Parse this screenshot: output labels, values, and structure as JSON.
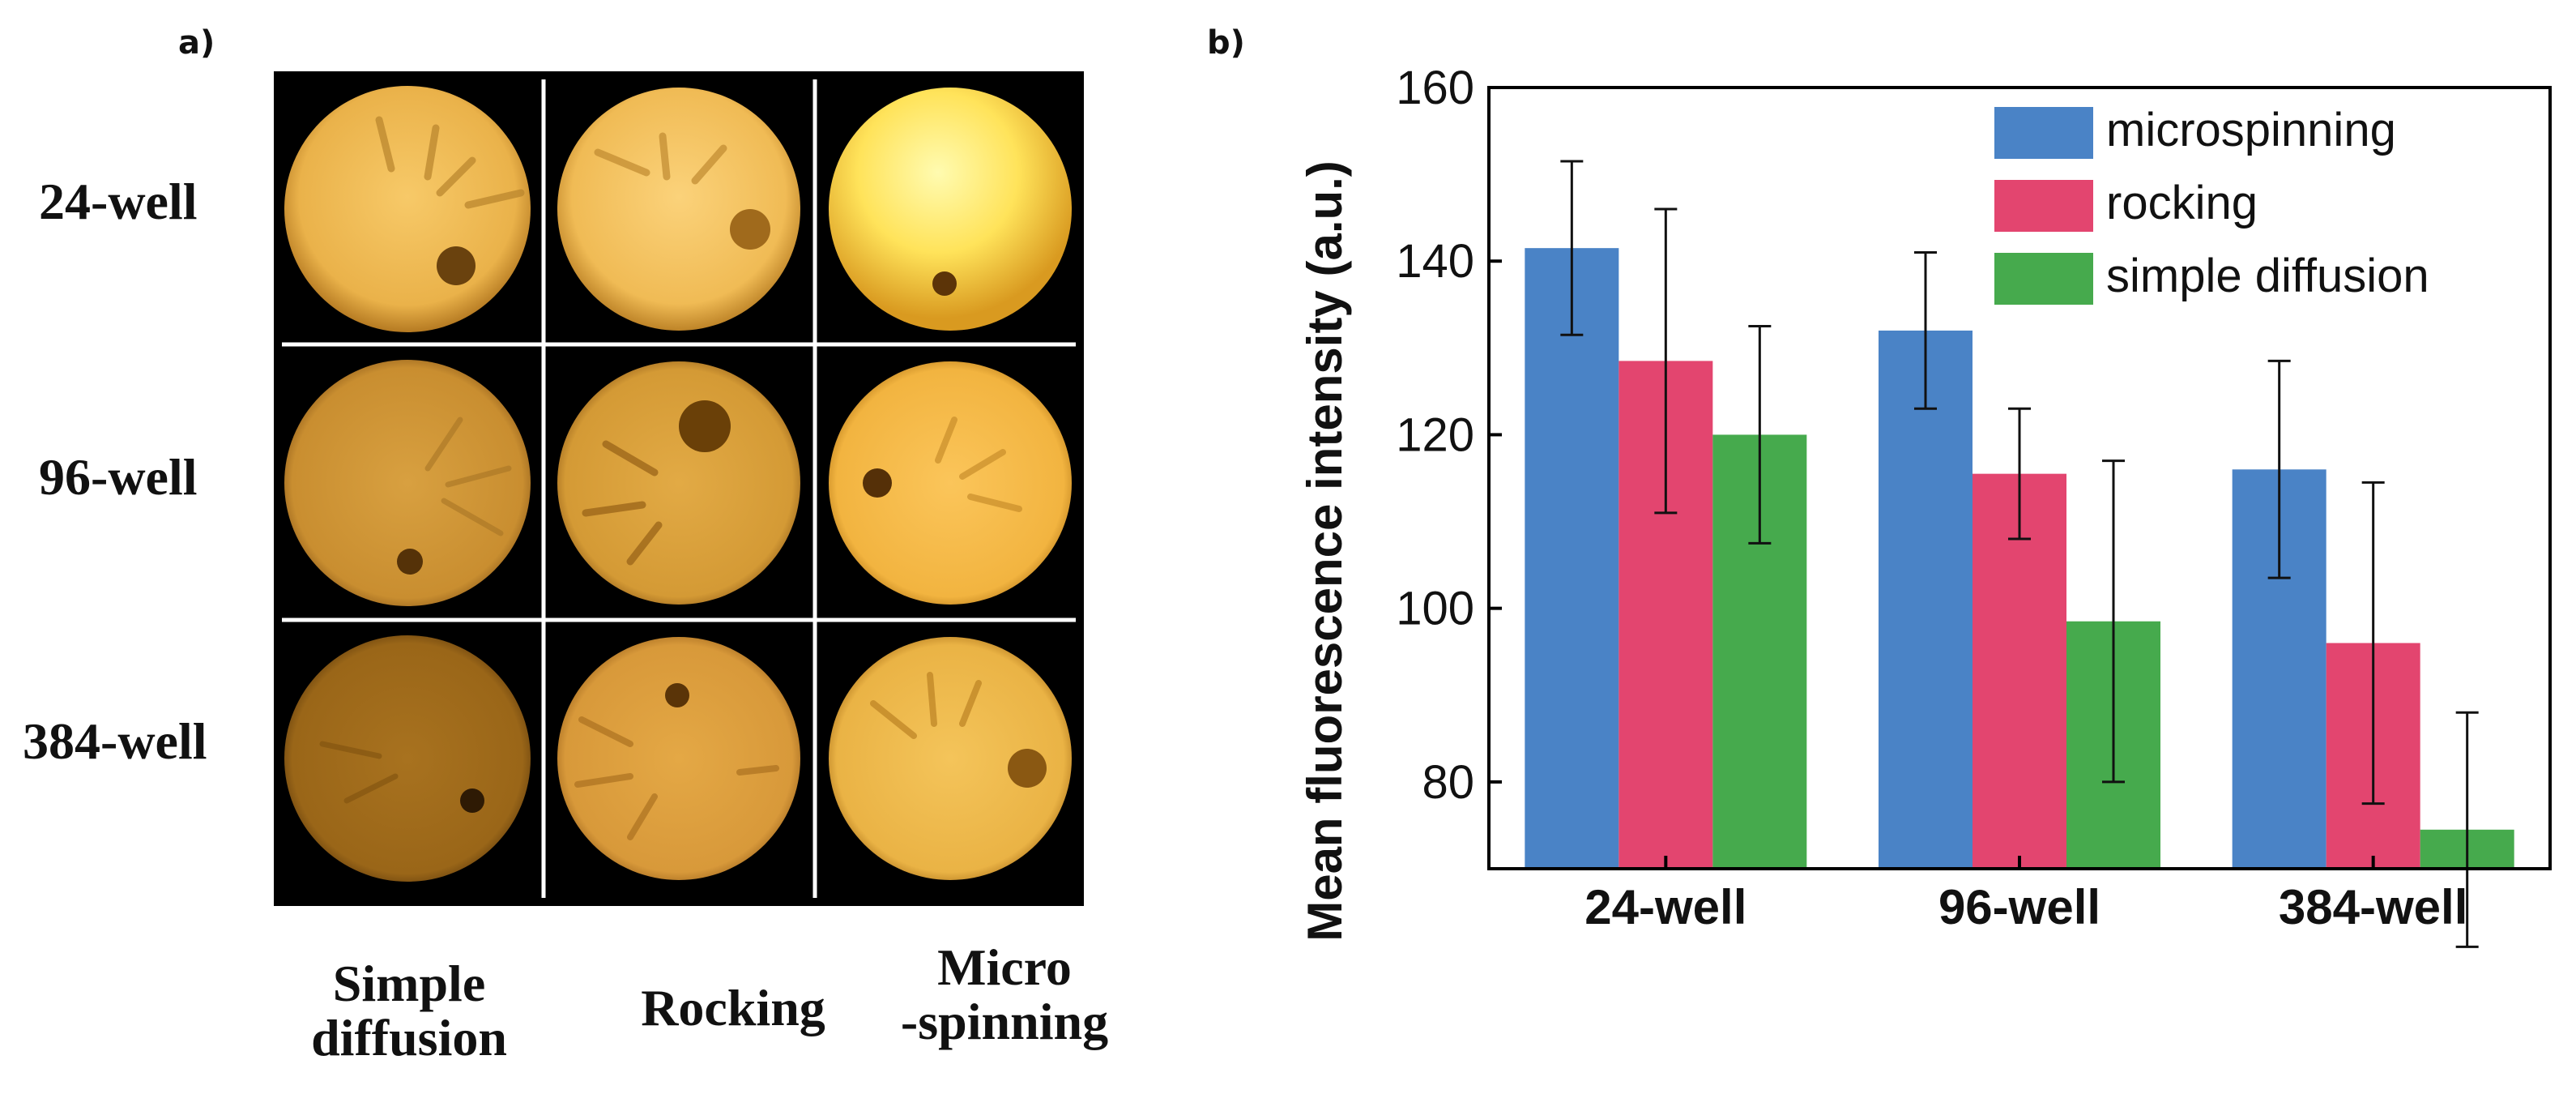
{
  "panel_a": {
    "label": "a)",
    "row_labels": [
      "24-well",
      "96-well",
      "384-well"
    ],
    "column_labels": [
      {
        "line1": "Simple",
        "line2": "diffusion"
      },
      {
        "line1": "Rocking",
        "line2": ""
      },
      {
        "line1": "Micro",
        "line2": "-spinning"
      }
    ]
  },
  "panel_b": {
    "label": "b)"
  },
  "colors": {
    "microspinning": "#4a83c6",
    "rocking": "#e3456f",
    "simple_diffusion": "#46aa4d"
  },
  "chart_data": {
    "type": "bar",
    "title": "",
    "xlabel": "",
    "ylabel": "Mean fluorescence intensity (a.u.)",
    "categories": [
      "24-well",
      "96-well",
      "384-well"
    ],
    "ylim": [
      70,
      160
    ],
    "yticks": [
      80,
      100,
      120,
      140,
      160
    ],
    "legend_position": "top-right",
    "series": [
      {
        "name": "microspinning",
        "values": [
          141.5,
          132,
          116
        ],
        "errors": [
          10,
          9,
          12.5
        ]
      },
      {
        "name": "rocking",
        "values": [
          128.5,
          115.5,
          96
        ],
        "errors": [
          17.5,
          7.5,
          18.5
        ]
      },
      {
        "name": "simple diffusion",
        "values": [
          120,
          98.5,
          74.5
        ],
        "errors": [
          12.5,
          18.5,
          13.5
        ]
      }
    ]
  }
}
